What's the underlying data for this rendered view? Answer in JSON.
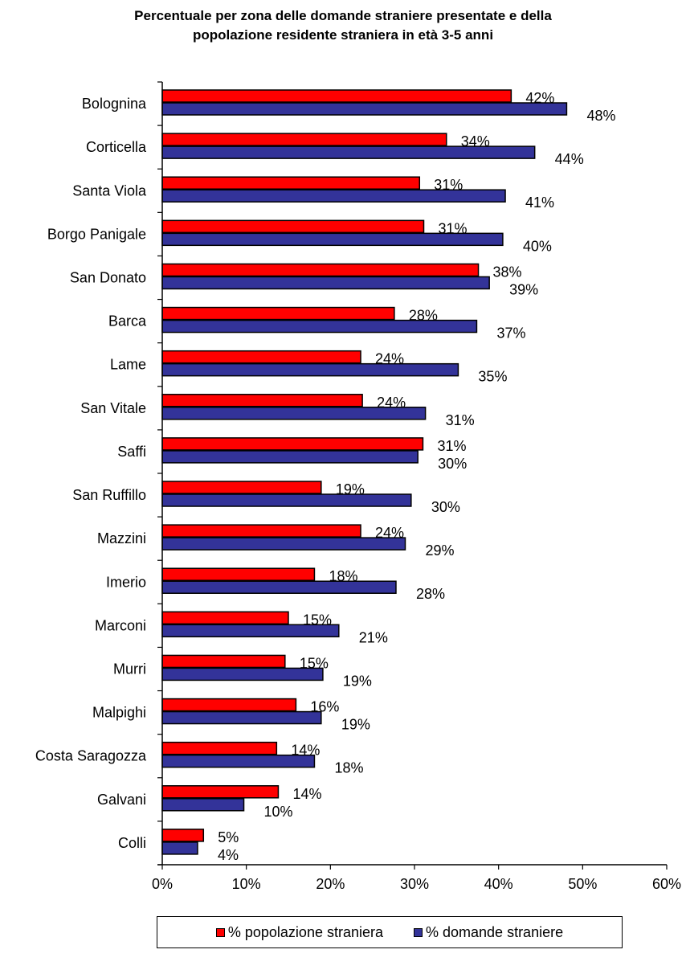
{
  "chart_data": {
    "type": "bar",
    "orientation": "horizontal",
    "title_lines": [
      "Percentuale per zona delle domande straniere presentate e della",
      "popolazione residente straniera in età 3-5 anni"
    ],
    "categories": [
      "Bolognina",
      "Corticella",
      "Santa Viola",
      "Borgo Panigale",
      "San Donato",
      "Barca",
      "Lame",
      "San Vitale",
      "Saffi",
      "San Ruffillo",
      "Mazzini",
      "Imerio",
      "Marconi",
      "Murri",
      "Malpighi",
      "Costa Saragozza",
      "Galvani",
      "Colli"
    ],
    "series": [
      {
        "name": "% popolazione straniera",
        "color": "#ff0000",
        "values": [
          41.5,
          33.8,
          30.6,
          31.1,
          37.6,
          27.6,
          23.6,
          23.8,
          31.0,
          18.9,
          23.6,
          18.1,
          15.0,
          14.6,
          15.9,
          13.6,
          13.8,
          4.9
        ],
        "labels": [
          "42%",
          "34%",
          "31%",
          "31%",
          "38%",
          "28%",
          "24%",
          "24%",
          "31%",
          "19%",
          "24%",
          "18%",
          "15%",
          "15%",
          "16%",
          "14%",
          "14%",
          "5%"
        ]
      },
      {
        "name": "% domande straniere",
        "color": "#333399",
        "values": [
          48.1,
          44.3,
          40.8,
          40.5,
          38.9,
          37.4,
          35.2,
          31.3,
          30.4,
          29.6,
          28.9,
          27.8,
          21.0,
          19.1,
          18.9,
          18.1,
          9.7,
          4.2
        ],
        "labels": [
          "48%",
          "44%",
          "41%",
          "40%",
          "39%",
          "37%",
          "35%",
          "31%",
          "30%",
          "30%",
          "29%",
          "28%",
          "21%",
          "19%",
          "19%",
          "18%",
          "10%",
          "4%"
        ]
      }
    ],
    "xlim": [
      0,
      60
    ],
    "xticks": [
      0,
      10,
      20,
      30,
      40,
      50,
      60
    ],
    "xtick_labels": [
      "0%",
      "10%",
      "20%",
      "30%",
      "40%",
      "50%",
      "60%"
    ],
    "grid": false,
    "legend_position": "bottom"
  }
}
